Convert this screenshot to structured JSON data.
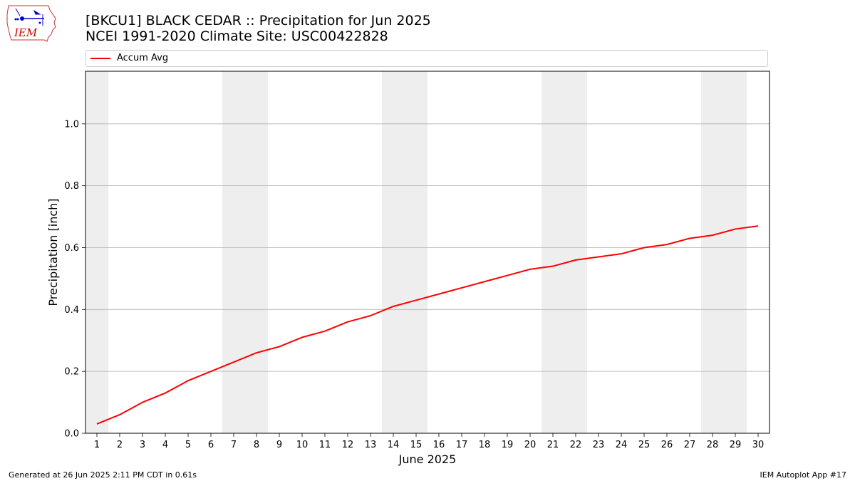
{
  "logo": {
    "text": "IEM",
    "colors": {
      "text": "#cc0000",
      "outline": "#cc3333",
      "icon": "#0000cc"
    }
  },
  "header": {
    "title_line1": "[BKCU1] BLACK CEDAR :: Precipitation for Jun 2025",
    "title_line2": "NCEI 1991-2020 Climate Site: USC00422828"
  },
  "legend": {
    "entries": [
      {
        "label": "Accum Avg",
        "color": "#ff0000"
      }
    ],
    "placement": "top"
  },
  "footer": {
    "left": "Generated at 26 Jun 2025 2:11 PM CDT in 0.61s",
    "right": "IEM Autoplot App #17"
  },
  "chart_data": {
    "type": "line",
    "xlabel": "June 2025",
    "ylabel": "Precipitation [inch]",
    "x": [
      1,
      2,
      3,
      4,
      5,
      6,
      7,
      8,
      9,
      10,
      11,
      12,
      13,
      14,
      15,
      16,
      17,
      18,
      19,
      20,
      21,
      22,
      23,
      24,
      25,
      26,
      27,
      28,
      29,
      30
    ],
    "series": [
      {
        "name": "Accum Avg",
        "color": "#ff0000",
        "values": [
          0.03,
          0.06,
          0.1,
          0.13,
          0.17,
          0.2,
          0.23,
          0.26,
          0.28,
          0.31,
          0.33,
          0.36,
          0.38,
          0.41,
          0.43,
          0.45,
          0.47,
          0.49,
          0.51,
          0.53,
          0.54,
          0.56,
          0.57,
          0.58,
          0.6,
          0.61,
          0.63,
          0.64,
          0.66,
          0.67
        ]
      }
    ],
    "xlim": [
      0.5,
      30.5
    ],
    "ylim": [
      0,
      1.17
    ],
    "yticks": [
      0.0,
      0.2,
      0.4,
      0.6,
      0.8,
      1.0
    ],
    "ytick_labels": [
      "0.0",
      "0.2",
      "0.4",
      "0.6",
      "0.8",
      "1.0"
    ],
    "xtick_labels": [
      "1",
      "2",
      "3",
      "4",
      "5",
      "6",
      "7",
      "8",
      "9",
      "10",
      "11",
      "12",
      "13",
      "14",
      "15",
      "16",
      "17",
      "18",
      "19",
      "20",
      "21",
      "22",
      "23",
      "24",
      "25",
      "26",
      "27",
      "28",
      "29",
      "30"
    ],
    "weekend_days": [
      1,
      7,
      8,
      14,
      15,
      21,
      22,
      28,
      29
    ],
    "weekend_shade_color": "#eeeeee",
    "grid": "horizontal",
    "grid_color": "#b0b0b0"
  }
}
